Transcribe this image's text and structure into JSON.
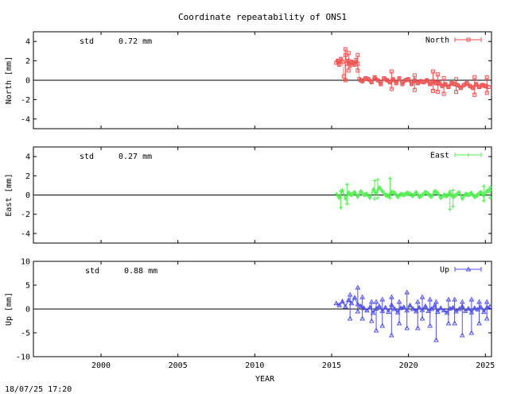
{
  "title": "Coordinate repeatability of ONS1",
  "xlabel": "YEAR",
  "timestamp": "18/07/25 17:20",
  "colors": {
    "north": "#f05050",
    "east": "#50f050",
    "up": "#5050f0"
  },
  "chart_data": [
    {
      "type": "scatter",
      "component": "north",
      "legend": "North",
      "ylabel": "North [mm]",
      "std_label": "std",
      "std_value": "0.72 mm",
      "xlim": [
        1995.6,
        2025.4
      ],
      "ylim": [
        -5,
        5
      ],
      "yticks": [
        4,
        2,
        0,
        -2,
        -4
      ],
      "xticks": [
        2000,
        2005,
        2010,
        2015,
        2020,
        2025
      ],
      "grid": false,
      "legend_position": "top-right",
      "series": [
        {
          "x": [
            2015.3,
            2015.4,
            2015.5,
            2015.6,
            2015.7,
            2015.8,
            2015.9,
            2016.0,
            2016.1,
            2016.2,
            2016.3,
            2016.4,
            2016.5,
            2016.6,
            2016.7,
            2016.8,
            2016.9,
            2017.0,
            2017.2,
            2017.4,
            2017.6,
            2017.8,
            2018.0,
            2018.2,
            2018.4,
            2018.6,
            2018.8,
            2019.0,
            2019.2,
            2019.4,
            2019.6,
            2019.8,
            2020.0,
            2020.2,
            2020.4,
            2020.6,
            2020.8,
            2021.0,
            2021.2,
            2021.4,
            2021.6,
            2021.8,
            2022.0,
            2022.2,
            2022.4,
            2022.6,
            2022.8,
            2023.0,
            2023.2,
            2023.4,
            2023.6,
            2023.8,
            2024.0,
            2024.2,
            2024.4,
            2024.6,
            2024.8,
            2025.0,
            2025.2
          ],
          "y": [
            1.8,
            2.0,
            1.6,
            2.2,
            1.9,
            0.4,
            2.6,
            1.7,
            2.0,
            1.5,
            1.9,
            1.8,
            1.6,
            2.1,
            1.7,
            0.1,
            0.0,
            -0.1,
            0.2,
            0.1,
            -0.2,
            0.3,
            0.0,
            -0.4,
            0.2,
            0.0,
            -0.2,
            0.1,
            -0.3,
            0.2,
            -0.4,
            0.0,
            0.1,
            -0.4,
            0.0,
            -0.3,
            -0.1,
            -0.2,
            0.0,
            -0.4,
            -0.1,
            -0.3,
            -0.3,
            -0.6,
            -0.4,
            -0.7,
            -0.3,
            -0.4,
            -0.5,
            -0.8,
            -0.5,
            -0.3,
            -0.6,
            -0.8,
            -0.4,
            -0.7,
            -0.5,
            -0.6,
            -0.7
          ]
        }
      ],
      "errbars": [
        {
          "x": 2015.9,
          "lo": 0.0,
          "hi": 3.2
        },
        {
          "x": 2016.1,
          "lo": 1.0,
          "hi": 2.8
        },
        {
          "x": 2016.7,
          "lo": 1.0,
          "hi": 2.6
        },
        {
          "x": 2018.9,
          "lo": -0.9,
          "hi": 0.9
        },
        {
          "x": 2020.4,
          "lo": -1.0,
          "hi": 0.5
        },
        {
          "x": 2021.6,
          "lo": -1.1,
          "hi": 0.9
        },
        {
          "x": 2021.9,
          "lo": -1.2,
          "hi": 0.6
        },
        {
          "x": 2022.3,
          "lo": -1.4,
          "hi": 0.2
        },
        {
          "x": 2023.1,
          "lo": -1.2,
          "hi": 0.1
        },
        {
          "x": 2024.3,
          "lo": -1.5,
          "hi": 0.3
        },
        {
          "x": 2025.1,
          "lo": -1.3,
          "hi": 0.3
        }
      ]
    },
    {
      "type": "scatter",
      "component": "east",
      "legend": "East",
      "ylabel": "East [mm]",
      "std_label": "std",
      "std_value": "0.27 mm",
      "xlim": [
        1995.6,
        2025.4
      ],
      "ylim": [
        -5,
        5
      ],
      "yticks": [
        4,
        2,
        0,
        -2,
        -4
      ],
      "xticks": [
        2000,
        2005,
        2010,
        2015,
        2020,
        2025
      ],
      "grid": false,
      "legend_position": "top-right",
      "series": [
        {
          "x": [
            2015.3,
            2015.5,
            2015.7,
            2015.9,
            2016.1,
            2016.3,
            2016.5,
            2016.7,
            2016.9,
            2017.1,
            2017.3,
            2017.5,
            2017.7,
            2017.9,
            2018.1,
            2018.3,
            2018.5,
            2018.7,
            2018.9,
            2019.1,
            2019.3,
            2019.5,
            2019.7,
            2019.9,
            2020.1,
            2020.3,
            2020.5,
            2020.7,
            2020.9,
            2021.1,
            2021.3,
            2021.5,
            2021.7,
            2021.9,
            2022.1,
            2022.3,
            2022.5,
            2022.7,
            2022.9,
            2023.1,
            2023.3,
            2023.5,
            2023.7,
            2023.9,
            2024.1,
            2024.3,
            2024.5,
            2024.7,
            2024.9,
            2025.1,
            2025.3
          ],
          "y": [
            0.1,
            -0.3,
            0.5,
            -0.4,
            0.2,
            0.0,
            0.3,
            -0.2,
            0.4,
            0.0,
            0.1,
            -0.3,
            0.6,
            0.2,
            0.8,
            0.4,
            0.0,
            -0.1,
            0.3,
            0.2,
            -0.2,
            0.1,
            0.0,
            0.2,
            0.1,
            -0.1,
            0.3,
            -0.2,
            0.0,
            0.3,
            0.1,
            -0.2,
            0.4,
            0.2,
            -0.3,
            0.0,
            -0.1,
            0.2,
            -0.2,
            0.0,
            0.3,
            -0.4,
            0.1,
            0.0,
            0.2,
            -0.2,
            0.0,
            0.3,
            -0.1,
            0.4,
            0.5
          ]
        }
      ],
      "errbars": [
        {
          "x": 2015.6,
          "lo": -1.3,
          "hi": 0.4
        },
        {
          "x": 2016.0,
          "lo": -0.9,
          "hi": 1.1
        },
        {
          "x": 2017.8,
          "lo": -0.4,
          "hi": 1.5
        },
        {
          "x": 2018.0,
          "lo": -0.3,
          "hi": 1.6
        },
        {
          "x": 2018.8,
          "lo": -0.3,
          "hi": 1.7
        },
        {
          "x": 2022.7,
          "lo": -1.5,
          "hi": 0.4
        },
        {
          "x": 2022.9,
          "lo": -1.2,
          "hi": 0.5
        },
        {
          "x": 2024.9,
          "lo": -0.6,
          "hi": 0.9
        },
        {
          "x": 2025.3,
          "lo": -0.3,
          "hi": 0.8
        }
      ]
    },
    {
      "type": "scatter",
      "component": "up",
      "legend": "Up",
      "ylabel": "Up [mm]",
      "std_label": "std",
      "std_value": "0.88 mm",
      "xlim": [
        1995.6,
        2025.4
      ],
      "ylim": [
        -10,
        10
      ],
      "yticks": [
        10,
        5,
        0,
        -5,
        -10
      ],
      "xticks": [
        2000,
        2005,
        2010,
        2015,
        2020,
        2025
      ],
      "grid": false,
      "legend_position": "top-right",
      "series": [
        {
          "x": [
            2015.3,
            2015.5,
            2015.7,
            2015.9,
            2016.1,
            2016.3,
            2016.5,
            2016.7,
            2016.9,
            2017.1,
            2017.3,
            2017.5,
            2017.7,
            2017.9,
            2018.1,
            2018.3,
            2018.5,
            2018.7,
            2018.9,
            2019.1,
            2019.3,
            2019.5,
            2019.7,
            2019.9,
            2020.1,
            2020.3,
            2020.5,
            2020.7,
            2020.9,
            2021.1,
            2021.3,
            2021.5,
            2021.7,
            2021.9,
            2022.1,
            2022.3,
            2022.5,
            2022.7,
            2022.9,
            2023.1,
            2023.3,
            2023.5,
            2023.7,
            2023.9,
            2024.1,
            2024.3,
            2024.5,
            2024.7,
            2024.9,
            2025.1,
            2025.3
          ],
          "y": [
            1.2,
            0.8,
            1.6,
            0.5,
            1.9,
            1.2,
            2.4,
            1.0,
            0.6,
            0.2,
            -0.3,
            0.4,
            -0.8,
            0.1,
            0.6,
            -0.4,
            0.3,
            -0.6,
            0.9,
            0.0,
            -0.7,
            0.2,
            0.4,
            -0.3,
            0.8,
            0.0,
            -0.5,
            0.3,
            -0.2,
            0.6,
            -0.4,
            0.0,
            0.7,
            -0.6,
            0.2,
            -0.3,
            -0.8,
            0.1,
            0.3,
            -0.5,
            0.0,
            0.6,
            -0.4,
            0.1,
            -0.7,
            0.2,
            -0.1,
            0.4,
            -0.6,
            0.3,
            0.5
          ]
        }
      ],
      "errbars": [
        {
          "x": 2016.2,
          "lo": -2.0,
          "hi": 3.0
        },
        {
          "x": 2016.7,
          "lo": -0.5,
          "hi": 4.5
        },
        {
          "x": 2017.0,
          "lo": -2.0,
          "hi": 2.5
        },
        {
          "x": 2017.6,
          "lo": -2.5,
          "hi": 1.5
        },
        {
          "x": 2017.9,
          "lo": -4.5,
          "hi": 1.5
        },
        {
          "x": 2018.3,
          "lo": -3.5,
          "hi": 2.0
        },
        {
          "x": 2018.9,
          "lo": -5.5,
          "hi": 2.5
        },
        {
          "x": 2019.4,
          "lo": -3.0,
          "hi": 1.5
        },
        {
          "x": 2019.9,
          "lo": -4.0,
          "hi": 3.5
        },
        {
          "x": 2020.6,
          "lo": -4.0,
          "hi": 1.5
        },
        {
          "x": 2020.9,
          "lo": -2.0,
          "hi": 2.5
        },
        {
          "x": 2021.4,
          "lo": -3.5,
          "hi": 2.0
        },
        {
          "x": 2021.8,
          "lo": -6.5,
          "hi": 1.5
        },
        {
          "x": 2022.6,
          "lo": -3.0,
          "hi": 2.0
        },
        {
          "x": 2023.0,
          "lo": -3.0,
          "hi": 2.0
        },
        {
          "x": 2023.5,
          "lo": -5.5,
          "hi": 1.5
        },
        {
          "x": 2024.1,
          "lo": -5.0,
          "hi": 2.0
        },
        {
          "x": 2024.6,
          "lo": -3.0,
          "hi": 1.5
        },
        {
          "x": 2025.1,
          "lo": -2.0,
          "hi": 1.5
        }
      ]
    }
  ]
}
